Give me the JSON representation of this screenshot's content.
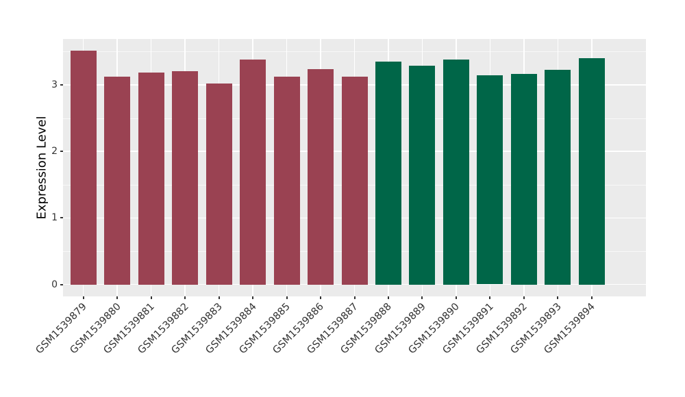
{
  "chart_data": {
    "type": "bar",
    "title": "",
    "xlabel": "",
    "ylabel": "Expression Level",
    "categories": [
      "GSM1539879",
      "GSM1539880",
      "GSM1539881",
      "GSM1539882",
      "GSM1539883",
      "GSM1539884",
      "GSM1539885",
      "GSM1539886",
      "GSM1539887",
      "GSM1539888",
      "GSM1539889",
      "GSM1539890",
      "GSM1539891",
      "GSM1539892",
      "GSM1539893",
      "GSM1539894"
    ],
    "values": [
      3.52,
      3.12,
      3.19,
      3.21,
      3.02,
      3.38,
      3.12,
      3.24,
      3.12,
      3.35,
      3.29,
      3.38,
      3.14,
      3.16,
      3.23,
      3.4
    ],
    "bar_colors": [
      "#9A4252",
      "#9A4252",
      "#9A4252",
      "#9A4252",
      "#9A4252",
      "#9A4252",
      "#9A4252",
      "#9A4252",
      "#9A4252",
      "#006648",
      "#006648",
      "#006648",
      "#006648",
      "#006648",
      "#006648",
      "#006648"
    ],
    "group_colors": {
      "group_1": "#9A4252",
      "group_2": "#006648"
    },
    "ylim": [
      -0.18,
      3.69
    ],
    "yticks": [
      0,
      1,
      2,
      3
    ],
    "ytick_labels": [
      "0",
      "1",
      "2",
      "3"
    ],
    "yminor": [
      0.5,
      1.5,
      2.5,
      3.5
    ],
    "x_tick_rotation_deg": 45,
    "grid": true,
    "legend": "none",
    "panel_background": "#EBEBEB",
    "grid_color": "#FFFFFF",
    "tick_color": "#333333",
    "axis_text_color": "#333333",
    "axis_title_color": "#000000"
  }
}
